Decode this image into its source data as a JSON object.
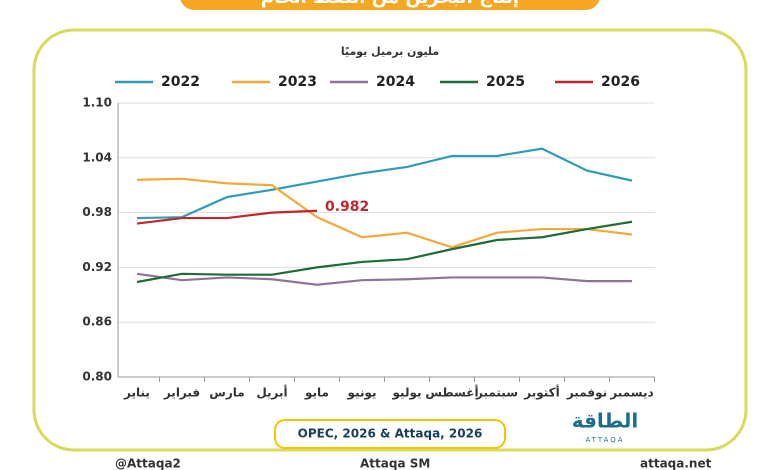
{
  "chart_data": {
    "type": "line",
    "title": "إنتاج البحرين من النفط الخام",
    "y_label": "مليون برميل يوميًا",
    "categories": [
      "يناير",
      "فبراير",
      "مارس",
      "أبريل",
      "مايو",
      "يونيو",
      "يوليو",
      "أغسطس",
      "سبتمبر",
      "أكتوبر",
      "نوفمبر",
      "ديسمبر"
    ],
    "series": [
      {
        "name": "2022",
        "color": "#2e9cb4",
        "values": [
          0.974,
          0.975,
          0.997,
          1.005,
          1.014,
          1.023,
          1.03,
          1.042,
          1.042,
          1.05,
          1.026,
          1.015
        ]
      },
      {
        "name": "2023",
        "color": "#f2a93b",
        "values": [
          1.016,
          1.017,
          1.012,
          1.01,
          0.975,
          0.953,
          0.958,
          0.942,
          0.958,
          0.962,
          0.962,
          0.956
        ]
      },
      {
        "name": "2024",
        "color": "#8e7396",
        "values": [
          0.913,
          0.906,
          0.909,
          0.907,
          0.901,
          0.906,
          0.907,
          0.909,
          0.909,
          0.909,
          0.905,
          0.905
        ]
      },
      {
        "name": "2025",
        "color": "#1f6b3a",
        "values": [
          0.904,
          0.913,
          0.912,
          0.912,
          0.92,
          0.926,
          0.929,
          0.94,
          0.95,
          0.953,
          0.962,
          0.97
        ]
      },
      {
        "name": "2026",
        "color": "#c0272d",
        "values": [
          0.968,
          0.974,
          0.974,
          0.98,
          0.982,
          null,
          null,
          null,
          null,
          null,
          null,
          null
        ]
      }
    ],
    "annotation_point": {
      "series": 4,
      "index": 4
    },
    "ylim": [
      0.8,
      1.1
    ],
    "yticks": [
      {
        "value": 0.8,
        "label": "0.80"
      },
      0.86,
      0.92,
      0.98,
      1.04,
      {
        "value": 1.1,
        "label": "1.10"
      }
    ],
    "grid": true,
    "source": "OPEC, 2026 & Attaqa, 2026"
  },
  "logo": {
    "name": "الطاقة",
    "latin": "ATTAQA"
  },
  "footer": [
    "@Attaqa2",
    "Attaqa SM",
    "attaqa.net"
  ]
}
